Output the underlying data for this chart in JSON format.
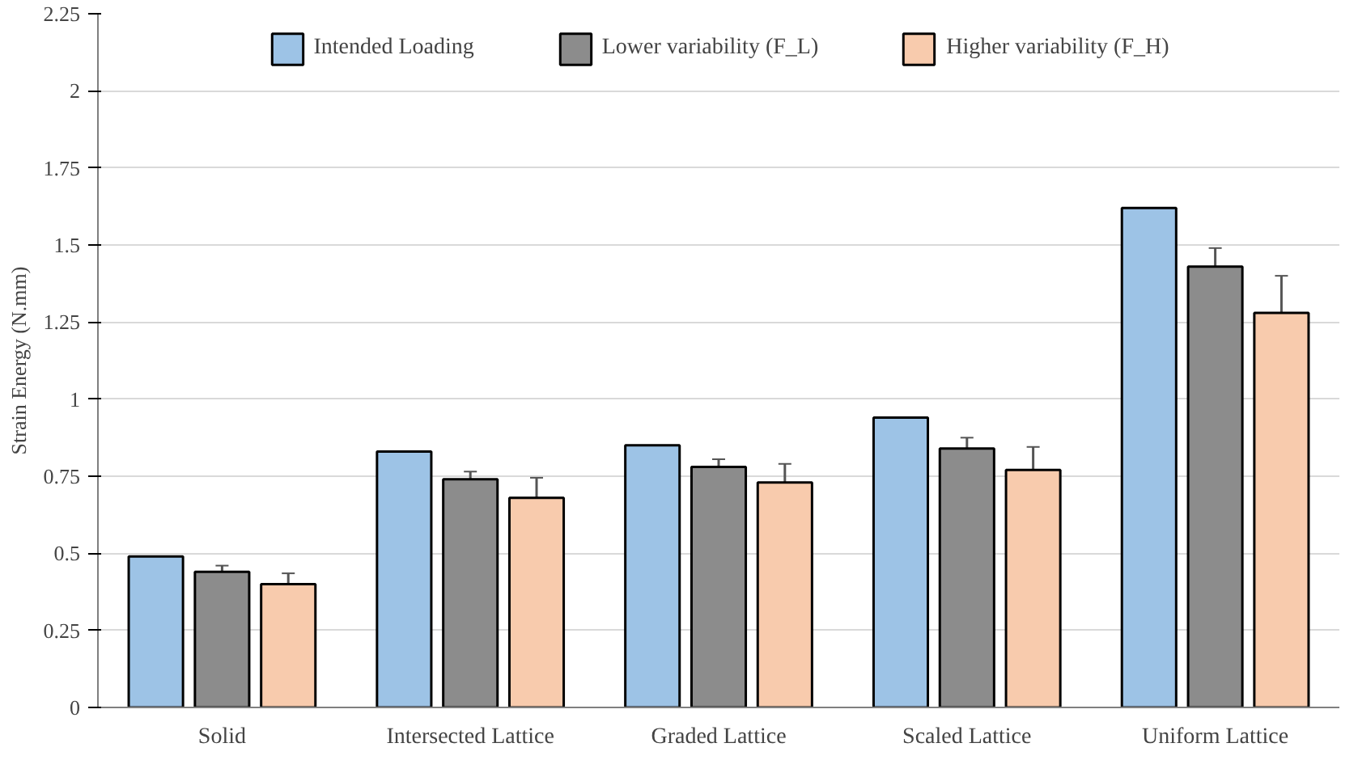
{
  "chart_data": {
    "type": "bar",
    "ylabel": "Strain Energy (N.mm)",
    "categories": [
      "Solid",
      "Intersected Lattice",
      "Graded Lattice",
      "Scaled Lattice",
      "Uniform Lattice"
    ],
    "series": [
      {
        "name": "Intended Loading",
        "color": "#9dc3e6",
        "values": [
          0.49,
          0.83,
          0.85,
          0.94,
          1.62
        ]
      },
      {
        "name": "Lower variability (F_L)",
        "color": "#8c8c8c",
        "values": [
          0.44,
          0.74,
          0.78,
          0.84,
          1.43
        ],
        "errors": [
          0.02,
          0.025,
          0.025,
          0.035,
          0.06
        ]
      },
      {
        "name": "Higher variability (F_H)",
        "color": "#f8cbad",
        "values": [
          0.4,
          0.68,
          0.73,
          0.77,
          1.28
        ],
        "errors": [
          0.035,
          0.065,
          0.06,
          0.075,
          0.12
        ]
      }
    ],
    "ylim": [
      0,
      2.25
    ],
    "yticks": [
      0,
      0.25,
      0.5,
      0.75,
      1,
      1.25,
      1.5,
      1.75,
      2,
      2.25
    ],
    "grid": "y",
    "legend": "top"
  }
}
